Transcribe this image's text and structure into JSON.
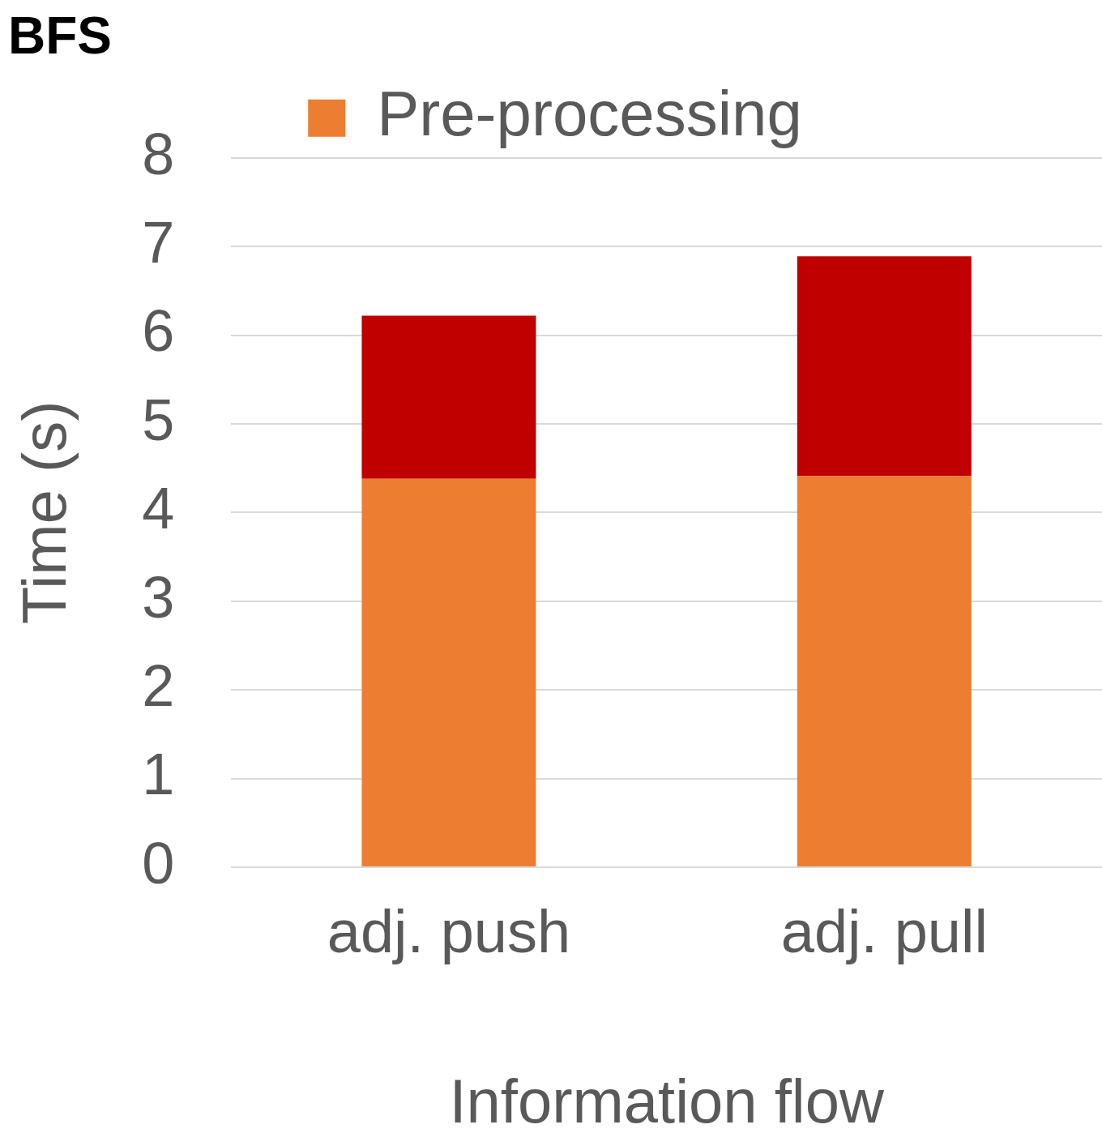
{
  "chart_data": {
    "type": "bar",
    "title": "BFS",
    "xlabel": "Information flow",
    "ylabel": "Time (s)",
    "categories": [
      "adj. push",
      "adj. pull"
    ],
    "series": [
      {
        "name": "Pre-processing",
        "color": "#ed7d31",
        "values": [
          4.38,
          4.41
        ]
      },
      {
        "color": "#c00000",
        "values": [
          1.84,
          2.48
        ]
      }
    ],
    "stacked": true,
    "ylim": [
      0,
      8
    ],
    "yticks": [
      0,
      1,
      2,
      3,
      4,
      5,
      6,
      7,
      8
    ],
    "grid": "y",
    "legend": "top"
  }
}
